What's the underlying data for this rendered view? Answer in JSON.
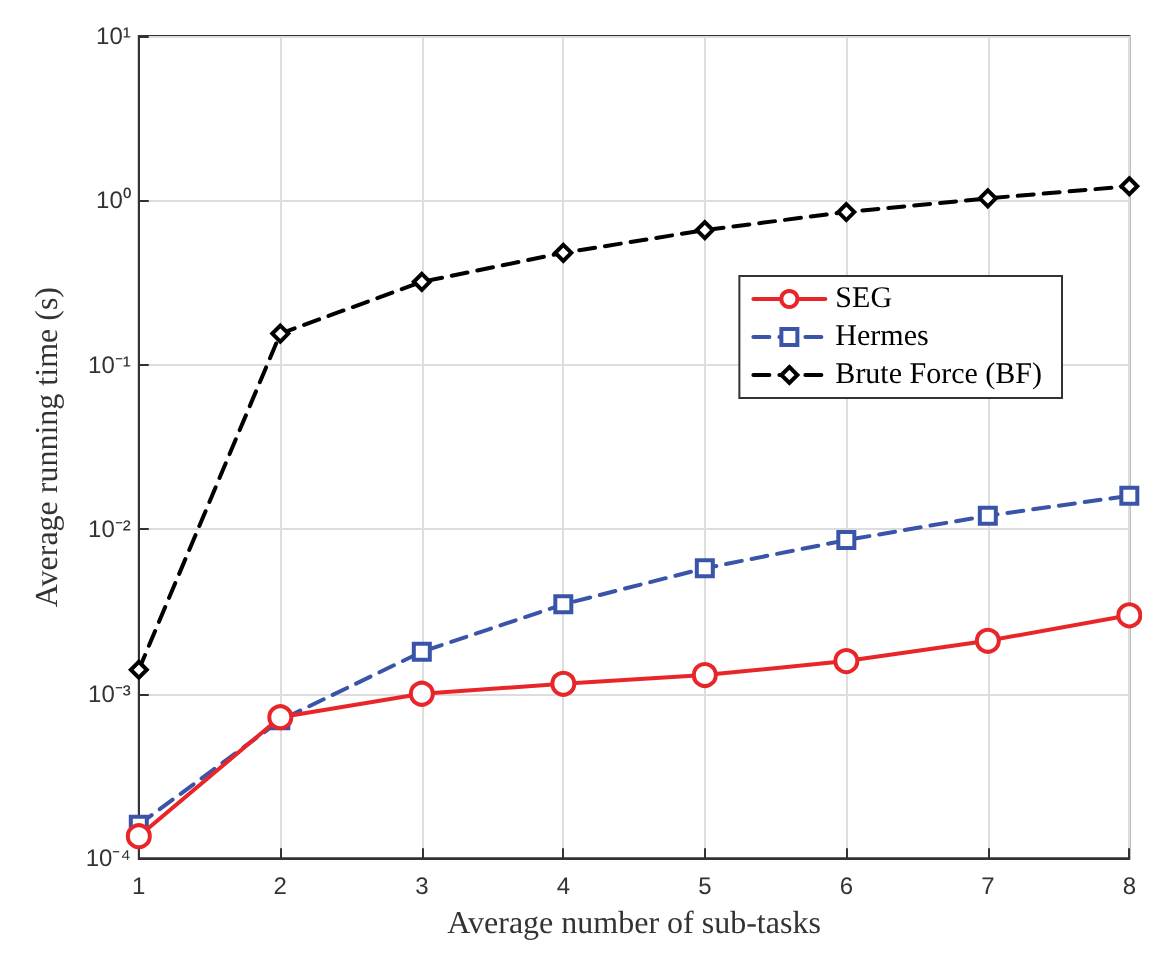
{
  "chart_data": {
    "type": "line",
    "xlabel": "Average number of sub-tasks",
    "ylabel": "Average running time (s)",
    "x": [
      1,
      2,
      3,
      4,
      5,
      6,
      7,
      8
    ],
    "xlim": [
      1,
      8
    ],
    "xticks": [
      1,
      2,
      3,
      4,
      5,
      6,
      7,
      8
    ],
    "ylim": [
      0.0001,
      10
    ],
    "yticks": [
      {
        "value": 0.0001,
        "label": "10⁻⁴"
      },
      {
        "value": 0.001,
        "label": "10⁻³"
      },
      {
        "value": 0.01,
        "label": "10⁻²"
      },
      {
        "value": 0.1,
        "label": "10⁻¹"
      },
      {
        "value": 1,
        "label": "10⁰"
      },
      {
        "value": 10,
        "label": "10¹"
      }
    ],
    "log": "y",
    "grid": true,
    "legend": "right",
    "series": [
      {
        "name": "SEG",
        "color": "#e8262a",
        "marker": "circle",
        "line_style": "solid",
        "values": [
          0.000136,
          0.00072,
          0.001,
          0.00115,
          0.0013,
          0.00158,
          0.0021,
          0.003
        ]
      },
      {
        "name": "Hermes",
        "color": "#3a55a8",
        "marker": "square",
        "line_style": "dashed",
        "values": [
          0.00016,
          0.00069,
          0.0018,
          0.0035,
          0.0058,
          0.0086,
          0.0121,
          0.016
        ]
      },
      {
        "name": "Brute Force (BF)",
        "color": "#000000",
        "marker": "diamond",
        "line_style": "dashed",
        "values": [
          0.0014,
          0.155,
          0.32,
          0.48,
          0.66,
          0.85,
          1.03,
          1.22
        ]
      }
    ]
  }
}
